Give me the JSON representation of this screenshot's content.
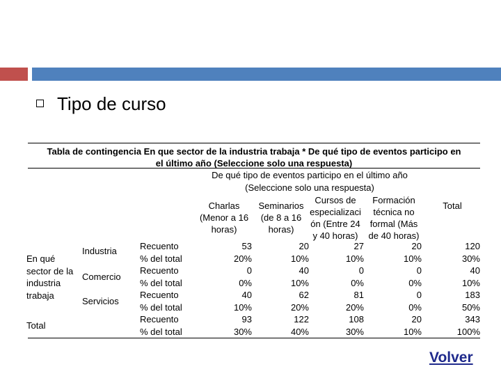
{
  "slide": {
    "title": "Tipo de curso"
  },
  "table": {
    "title_line1": "Tabla de contingencia En que sector de la industria trabaja * De qué tipo de eventos participo en",
    "title_line2": "el último año (Seleccione solo una respuesta)",
    "col_group_line1": "De qué tipo de eventos participo en el último año",
    "col_group_line2": "(Seleccione solo una respuesta)",
    "columns": [
      {
        "lines": [
          "Charlas",
          "(Menor a 16",
          "horas)"
        ]
      },
      {
        "lines": [
          "Seminarios",
          "(de 8 a 16",
          "horas)"
        ]
      },
      {
        "lines": [
          "Cursos de",
          "especializaci",
          "ón (Entre 24",
          "y 40 horas)"
        ]
      },
      {
        "lines": [
          "Formación",
          "técnica no",
          "formal (Más",
          "de 40 horas)"
        ]
      },
      {
        "lines": [
          "Total"
        ]
      }
    ],
    "row_group_label": [
      "En qué",
      "sector de la",
      "industria",
      "trabaja"
    ],
    "total_label": "Total",
    "rows": [
      {
        "name": "Industria",
        "count_label": "Recuento",
        "pct_label": "% del total",
        "counts": [
          "53",
          "20",
          "27",
          "20",
          "120"
        ],
        "pcts": [
          "20%",
          "10%",
          "10%",
          "10%",
          "30%"
        ]
      },
      {
        "name": "Comercio",
        "count_label": "Recuento",
        "pct_label": "% del total",
        "counts": [
          "0",
          "40",
          "0",
          "0",
          "40"
        ],
        "pcts": [
          "0%",
          "10%",
          "0%",
          "0%",
          "10%"
        ]
      },
      {
        "name": "Servicios",
        "count_label": "Recuento",
        "pct_label": "% del total",
        "counts": [
          "40",
          "62",
          "81",
          "0",
          "183"
        ],
        "pcts": [
          "10%",
          "20%",
          "20%",
          "0%",
          "50%"
        ]
      },
      {
        "name": "",
        "count_label": "Recuento",
        "pct_label": "% del total",
        "counts": [
          "93",
          "122",
          "108",
          "20",
          "343"
        ],
        "pcts": [
          "30%",
          "40%",
          "30%",
          "10%",
          "100%"
        ]
      }
    ]
  },
  "nav": {
    "back_label": "Volver"
  },
  "colors": {
    "accent_red": "#c0504d",
    "accent_blue": "#4f81bd",
    "link": "#1f2a8c"
  }
}
